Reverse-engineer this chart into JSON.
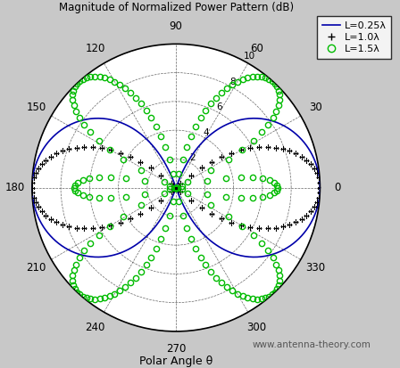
{
  "title": "Magnitude of Normalized Power Pattern (dB)",
  "xlabel": "Polar Angle θ",
  "watermark": "www.antenna-theory.com",
  "r_ticks": [
    2,
    4,
    6,
    8,
    10
  ],
  "r_tick_labels": [
    "2",
    "4",
    "6",
    "8",
    "10"
  ],
  "theta_ticks_deg": [
    0,
    30,
    60,
    90,
    120,
    150,
    180,
    210,
    240,
    270,
    300,
    330
  ],
  "theta_tick_labels": [
    "0",
    "30",
    "60",
    "90",
    "120",
    "150",
    "180",
    "210",
    "240",
    "270",
    "300",
    "330"
  ],
  "legend": [
    {
      "label": "L=0.25λ",
      "color": "#0000aa",
      "linestyle": "-"
    },
    {
      "label": "L=1.0λ",
      "color": "black",
      "marker": "+"
    },
    {
      "label": "L=1.5λ",
      "color": "#00bb00",
      "marker": "o"
    }
  ],
  "bg_color": "#c8c8c8",
  "plot_bg": "#ffffff",
  "rmax": 10,
  "n_points": 720,
  "marker_step_plus": 4,
  "marker_step_circle": 3
}
